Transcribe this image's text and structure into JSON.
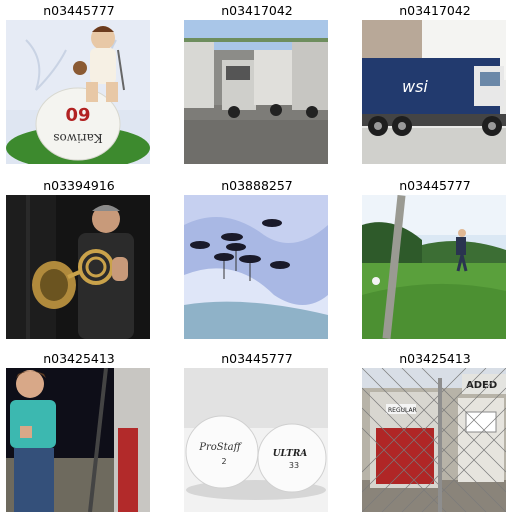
{
  "figure": {
    "panels": [
      {
        "label": "n03445777",
        "subject": "golf ball figurine cake with doll"
      },
      {
        "label": "n03417042",
        "subject": "garbage trucks parked in yard"
      },
      {
        "label": "n03417042",
        "subject": "blue garbage truck on street"
      },
      {
        "label": "n03394916",
        "subject": "man holding french horn"
      },
      {
        "label": "n03888257",
        "subject": "parachutes in sky artwork"
      },
      {
        "label": "n03445777",
        "subject": "golfer on green field"
      },
      {
        "label": "n03425413",
        "subject": "young man at gas pump"
      },
      {
        "label": "n03445777",
        "subject": "two golf balls"
      },
      {
        "label": "n03425413",
        "subject": "old gas pumps behind fence"
      }
    ]
  },
  "image_text": {
    "ball_number": "60",
    "ball_brand": "Kariwos",
    "truck_logo": "wsi",
    "golfball_left_brand": "ProStaff",
    "golfball_left_number": "2",
    "golfball_right_brand": "ULTRA",
    "golfball_right_number": "33",
    "pump_sign": "ADED",
    "pump_label": "REGULAR"
  }
}
